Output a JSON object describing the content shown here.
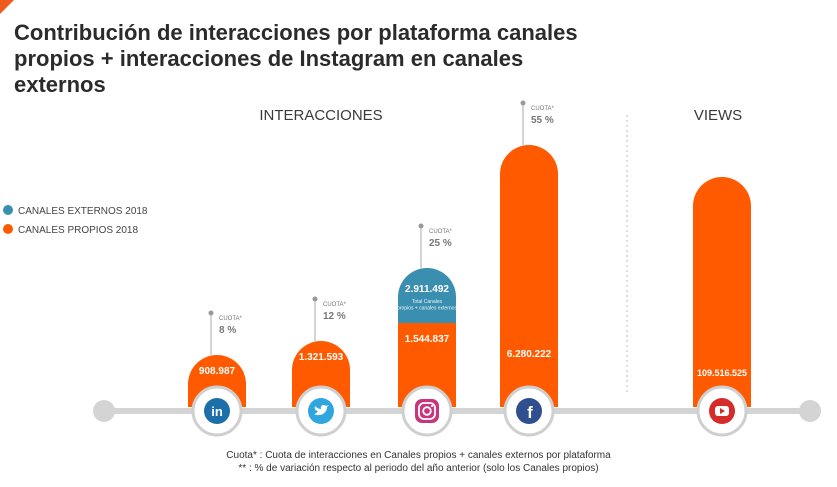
{
  "title": "Contribución de interacciones por plataforma canales propios + interacciones de Instagram en canales externos",
  "colors": {
    "propios": "#ff5a00",
    "externos": "#3a8fb0",
    "accent": "#f05a1c"
  },
  "chart_data": {
    "type": "bar",
    "sections": [
      "INTERACCIONES",
      "VIEWS"
    ],
    "legend": [
      {
        "label": "CANALES EXTERNOS 2018",
        "color": "#3a8fb0"
      },
      {
        "label": "CANALES PROPIOS 2018",
        "color": "#ff5a00"
      }
    ],
    "categories": [
      {
        "platform": "LinkedIn",
        "icon": "linkedin-icon",
        "section": "INTERACCIONES",
        "propios": 908987,
        "propios_label": "908.987",
        "cuota_label": "CUOTA*",
        "cuota": "8 %"
      },
      {
        "platform": "Twitter",
        "icon": "twitter-icon",
        "section": "INTERACCIONES",
        "propios": 1321593,
        "propios_label": "1.321.593",
        "cuota_label": "CUOTA*",
        "cuota": "12 %"
      },
      {
        "platform": "Instagram",
        "icon": "instagram-icon",
        "section": "INTERACCIONES",
        "propios": 1544837,
        "propios_label": "1.544.837",
        "externos": 2911492,
        "externos_label": "2.911.492",
        "externos_note": "Total Canales propios + canales externos",
        "cuota_label": "CUOTA*",
        "cuota": "25 %"
      },
      {
        "platform": "Facebook",
        "icon": "facebook-icon",
        "section": "INTERACCIONES",
        "propios": 6280222,
        "propios_label": "6.280.222",
        "cuota_label": "CUOTA*",
        "cuota": "55 %"
      },
      {
        "platform": "YouTube",
        "icon": "youtube-icon",
        "section": "VIEWS",
        "propios": 109516525,
        "propios_label": "109.516.525"
      }
    ]
  },
  "footnotes": [
    "Cuota* : Cuota de interacciones en Canales propios + canales externos por plataforma",
    "** : % de variación respecto al periodo del año anterior (solo los Canales propios)"
  ]
}
